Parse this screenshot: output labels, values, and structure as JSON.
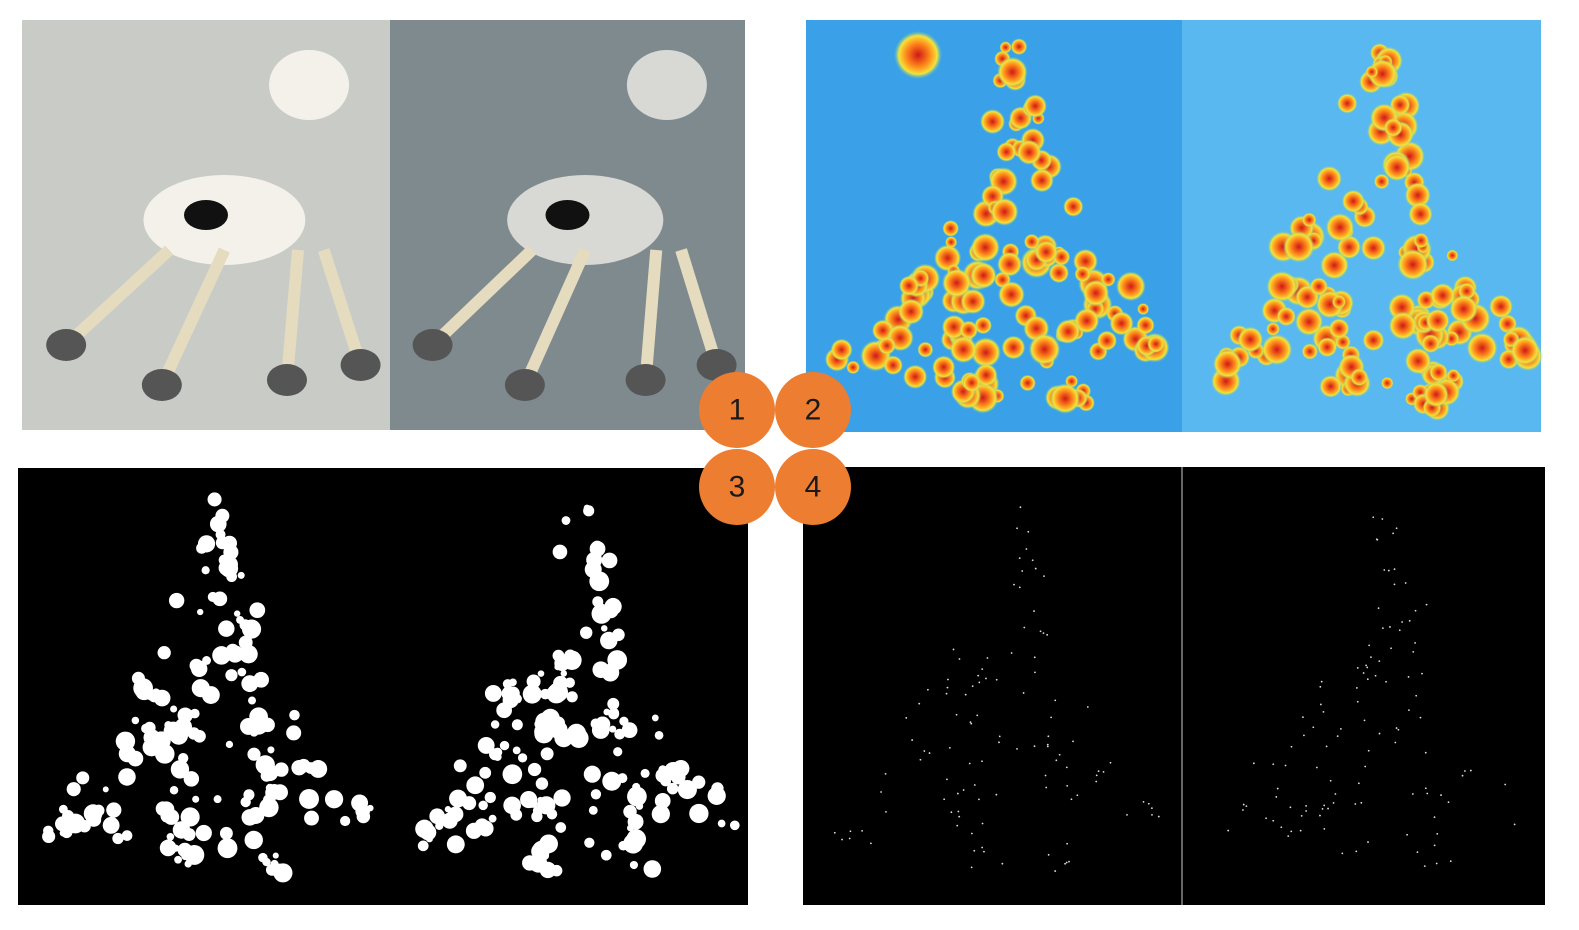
{
  "markers": [
    {
      "label": "1"
    },
    {
      "label": "2"
    },
    {
      "label": "3"
    },
    {
      "label": "4"
    }
  ]
}
